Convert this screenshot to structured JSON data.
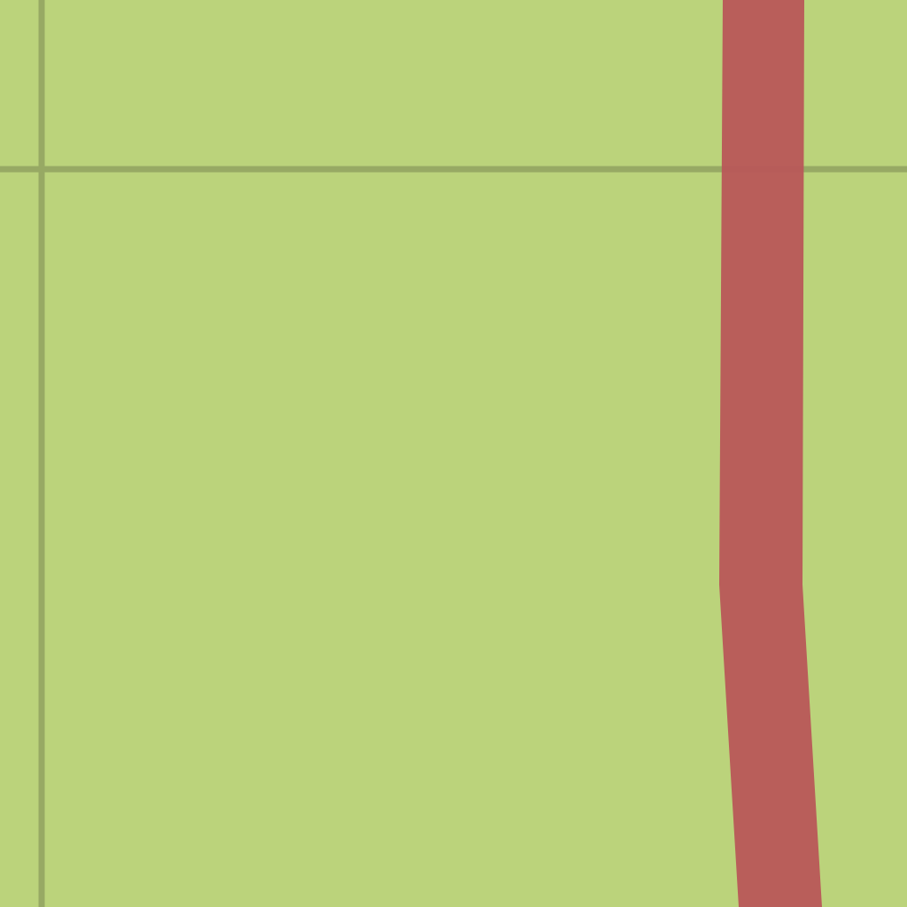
{
  "map": {
    "land_color": "#bbd37b",
    "boundary_color": "#97a964",
    "road_color": "#b85858",
    "features": [
      {
        "kind": "boundary-line",
        "orientation": "vertical"
      },
      {
        "kind": "boundary-line",
        "orientation": "horizontal"
      },
      {
        "kind": "major-road",
        "orientation": "vertical"
      }
    ]
  }
}
